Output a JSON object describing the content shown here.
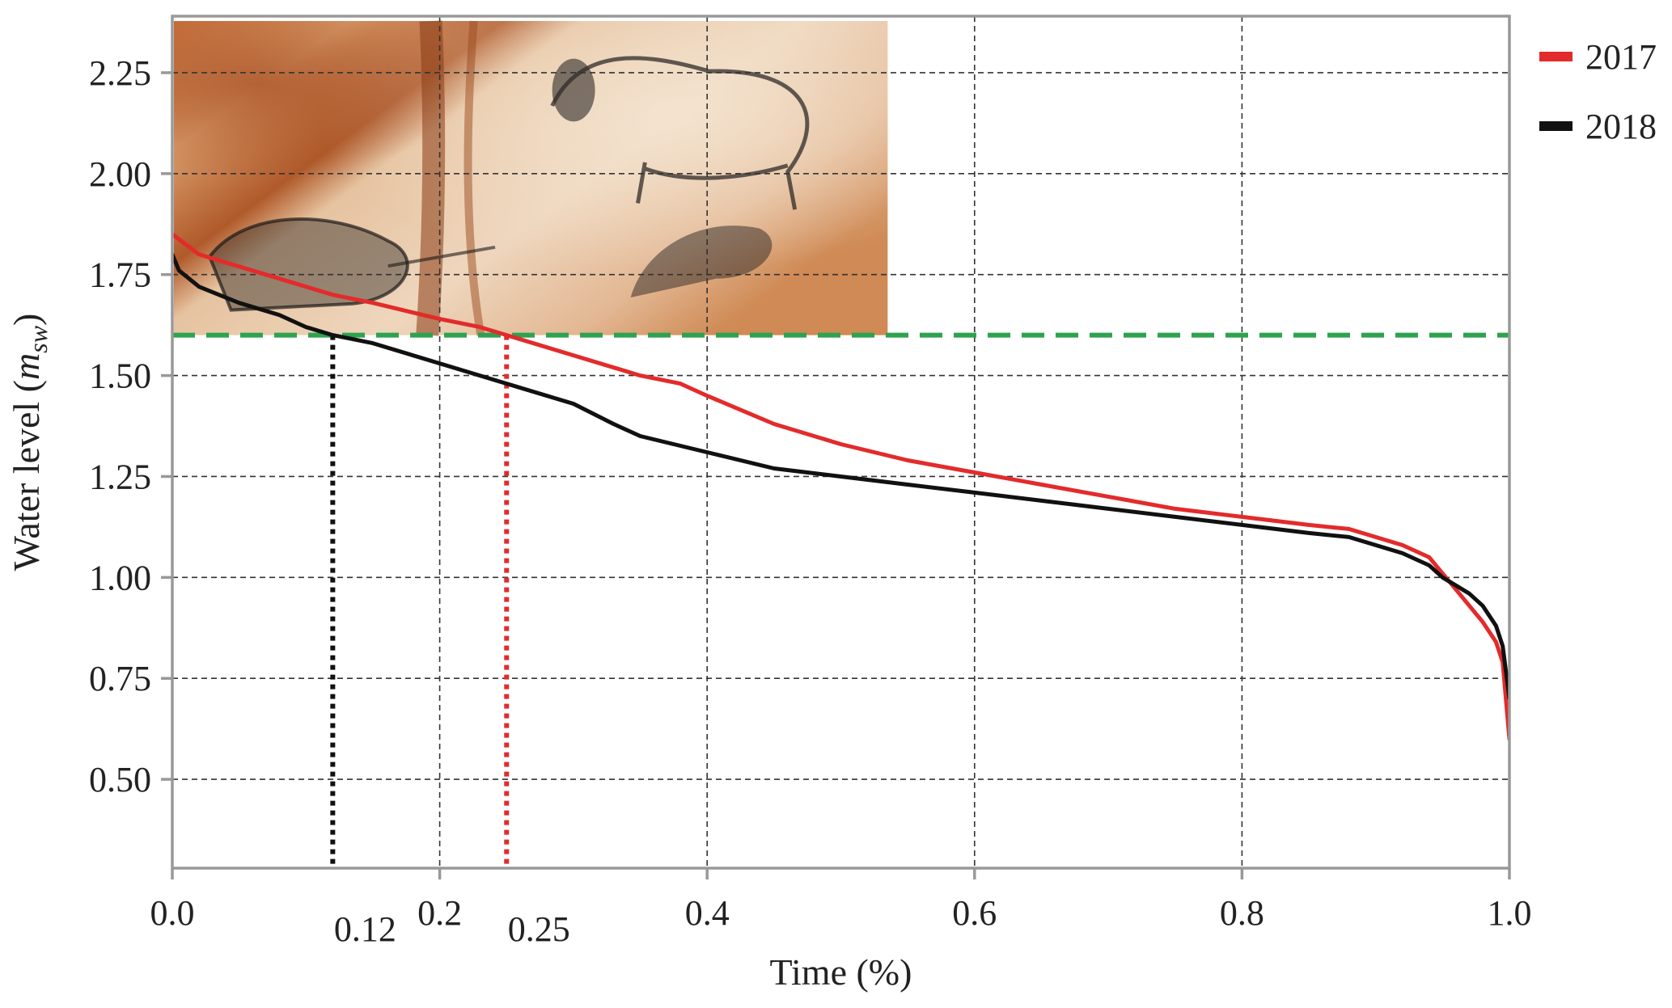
{
  "chart_data": {
    "type": "line",
    "title": "",
    "xlabel": "Time (%)",
    "ylabel_main": "Water level (",
    "ylabel_var": "m",
    "ylabel_sub": "sw",
    "ylabel_close": ")",
    "xlim": [
      0.0,
      1.0
    ],
    "ylim": [
      0.28,
      2.39
    ],
    "x_ticks": [
      0.0,
      0.2,
      0.4,
      0.6,
      0.8,
      1.0
    ],
    "x_tick_labels": [
      "0.0",
      "0.2",
      "0.4",
      "0.6",
      "0.8",
      "1.0"
    ],
    "y_ticks": [
      0.5,
      0.75,
      1.0,
      1.25,
      1.5,
      1.75,
      2.0,
      2.25
    ],
    "y_tick_labels": [
      "0.50",
      "0.75",
      "1.00",
      "1.25",
      "1.50",
      "1.75",
      "2.00",
      "2.25"
    ],
    "grid": true,
    "legend_position": "outside-top-right",
    "series": [
      {
        "name": "2017",
        "color": "#e32b2b",
        "x": [
          0.0,
          0.02,
          0.05,
          0.08,
          0.1,
          0.12,
          0.15,
          0.2,
          0.23,
          0.25,
          0.3,
          0.35,
          0.38,
          0.4,
          0.45,
          0.5,
          0.55,
          0.6,
          0.65,
          0.7,
          0.75,
          0.8,
          0.85,
          0.88,
          0.9,
          0.92,
          0.94,
          0.95,
          0.96,
          0.97,
          0.98,
          0.99,
          0.995,
          1.0
        ],
        "y": [
          1.85,
          1.8,
          1.77,
          1.74,
          1.72,
          1.7,
          1.68,
          1.64,
          1.62,
          1.6,
          1.55,
          1.5,
          1.48,
          1.45,
          1.38,
          1.33,
          1.29,
          1.26,
          1.23,
          1.2,
          1.17,
          1.15,
          1.13,
          1.12,
          1.1,
          1.08,
          1.05,
          1.01,
          0.97,
          0.93,
          0.89,
          0.84,
          0.79,
          0.6
        ]
      },
      {
        "name": "2018",
        "color": "#111111",
        "x": [
          0.0,
          0.005,
          0.02,
          0.05,
          0.08,
          0.1,
          0.12,
          0.15,
          0.2,
          0.25,
          0.3,
          0.33,
          0.35,
          0.4,
          0.45,
          0.5,
          0.55,
          0.6,
          0.65,
          0.7,
          0.75,
          0.8,
          0.85,
          0.88,
          0.9,
          0.92,
          0.94,
          0.95,
          0.96,
          0.97,
          0.98,
          0.99,
          0.995,
          1.0
        ],
        "y": [
          1.8,
          1.76,
          1.72,
          1.68,
          1.65,
          1.62,
          1.6,
          1.58,
          1.53,
          1.48,
          1.43,
          1.38,
          1.35,
          1.31,
          1.27,
          1.25,
          1.23,
          1.21,
          1.19,
          1.17,
          1.15,
          1.13,
          1.11,
          1.1,
          1.08,
          1.06,
          1.03,
          1.0,
          0.98,
          0.96,
          0.93,
          0.88,
          0.83,
          0.7
        ]
      }
    ],
    "threshold": {
      "y": 1.6,
      "color": "#2ea24f"
    },
    "markers": [
      {
        "x": 0.12,
        "label": "0.12",
        "color": "#111111"
      },
      {
        "x": 0.25,
        "label": "0.25",
        "color": "#e32b2b"
      }
    ],
    "inset_image": {
      "kind": "cave-painting-photo",
      "x_range": [
        0.0,
        0.535
      ],
      "y_range": [
        1.6,
        2.39
      ]
    }
  }
}
